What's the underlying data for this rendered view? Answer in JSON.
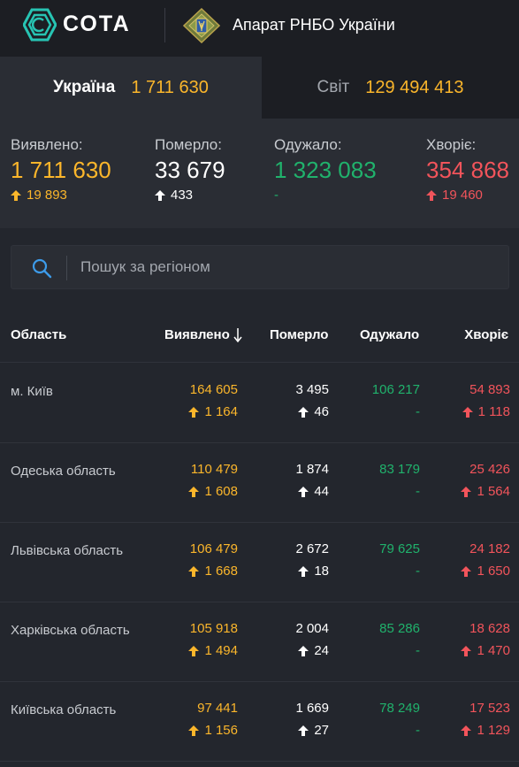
{
  "header": {
    "logo_text": "СОТА",
    "org_name": "Апарат РНБО України",
    "icons": [
      "sota-logo-icon",
      "rnbo-emblem-icon"
    ]
  },
  "tabs": [
    {
      "label": "Україна",
      "value": "1 711 630",
      "active": true
    },
    {
      "label": "Світ",
      "value": "129 494 413",
      "active": false
    }
  ],
  "summary": {
    "detected": {
      "label": "Виявлено:",
      "value": "1 711 630",
      "delta": "19 893"
    },
    "died": {
      "label": "Померло:",
      "value": "33 679",
      "delta": "433"
    },
    "recovered": {
      "label": "Одужало:",
      "value": "1 323 083",
      "delta": "-"
    },
    "sick": {
      "label": "Хворіє:",
      "value": "354 868",
      "delta": "19 460"
    }
  },
  "search": {
    "placeholder": "Пошук за регіоном",
    "value": ""
  },
  "table": {
    "headers": {
      "region": "Область",
      "detected": "Виявлено",
      "died": "Померло",
      "recovered": "Одужало",
      "sick": "Хворіє"
    },
    "rows": [
      {
        "region": "м. Київ",
        "detected": "164 605",
        "detected_delta": "1 164",
        "died": "3 495",
        "died_delta": "46",
        "recovered": "106 217",
        "recovered_delta": "-",
        "sick": "54 893",
        "sick_delta": "1 118"
      },
      {
        "region": "Одеська область",
        "detected": "110 479",
        "detected_delta": "1 608",
        "died": "1 874",
        "died_delta": "44",
        "recovered": "83 179",
        "recovered_delta": "-",
        "sick": "25 426",
        "sick_delta": "1 564"
      },
      {
        "region": "Львівська область",
        "detected": "106 479",
        "detected_delta": "1 668",
        "died": "2 672",
        "died_delta": "18",
        "recovered": "79 625",
        "recovered_delta": "-",
        "sick": "24 182",
        "sick_delta": "1 650"
      },
      {
        "region": "Харківська область",
        "detected": "105 918",
        "detected_delta": "1 494",
        "died": "2 004",
        "died_delta": "24",
        "recovered": "85 286",
        "recovered_delta": "-",
        "sick": "18 628",
        "sick_delta": "1 470"
      },
      {
        "region": "Київська область",
        "detected": "97 441",
        "detected_delta": "1 156",
        "died": "1 669",
        "died_delta": "27",
        "recovered": "78 249",
        "recovered_delta": "-",
        "sick": "17 523",
        "sick_delta": "1 129"
      }
    ]
  },
  "colors": {
    "background": "#23262d",
    "detected": "#fbb62b",
    "recovered": "#20b26c",
    "sick": "#f2545b",
    "search_icon": "#3d9be9"
  }
}
